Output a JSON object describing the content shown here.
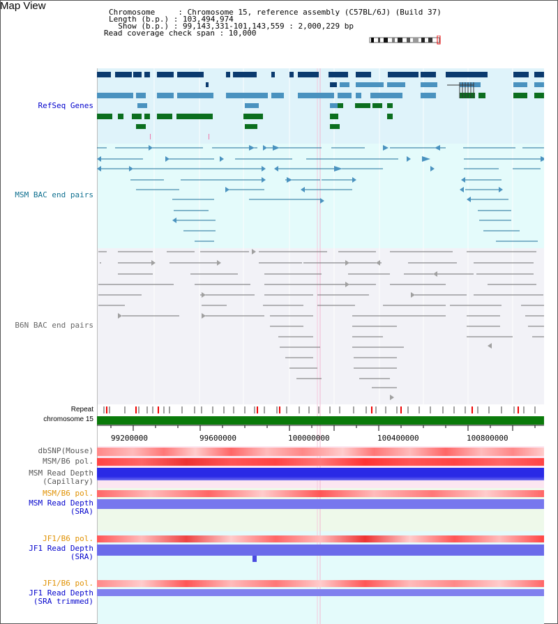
{
  "view": {
    "title": "Map View"
  },
  "header": {
    "chromosome_line": "Chromosome     : Chromosome 15, reference assembly (C57BL/6J) (Build 37)",
    "length_line": "Length (b.p.) : 103,494,974",
    "show_line": "  Show (b.p.) : 99,143,331-101,143,559 : 2,000,229 bp",
    "coverage_line": "Read coverage check span : 10,000"
  },
  "tracks": {
    "refseq": "RefSeq Genes",
    "msm_bac": "MSM BAC end pairs",
    "b6n_bac": "B6N BAC end pairs",
    "repeat": "Repeat",
    "chromosome": "chromosome 15",
    "dbsnp": "dbSNP(Mouse)",
    "msm_b6_pol": "MSM/B6 pol.",
    "msm_depth_cap": "MSM Read Depth\n(Capillary)",
    "msm_b6_pol2": "MSM/B6 pol.",
    "msm_depth_sra": "MSM Read Depth\n(SRA)",
    "jf1_b6_pol": "JF1/B6 pol.",
    "jf1_depth_sra": "JF1 Read Depth\n(SRA)",
    "jf1_b6_pol2": "JF1/B6 pol.",
    "jf1_depth_trim": "JF1 Read Depth\n(SRA trimmed)"
  },
  "axis": {
    "ticks": [
      "99200000",
      "99600000",
      "100000000",
      "100400000",
      "100800000"
    ]
  },
  "colors": {
    "gene_dark": "#0b3a6e",
    "gene_light": "#4a92bf",
    "gene_green": "#0b6e1e",
    "msm_pair": "#1d6e98",
    "b6n_pair": "#6f6f6f",
    "chromosome": "#0a7a0a",
    "pol_red": "#f05050",
    "depth_blue": "#2a2ae6",
    "depth_light": "#7777ee"
  }
}
